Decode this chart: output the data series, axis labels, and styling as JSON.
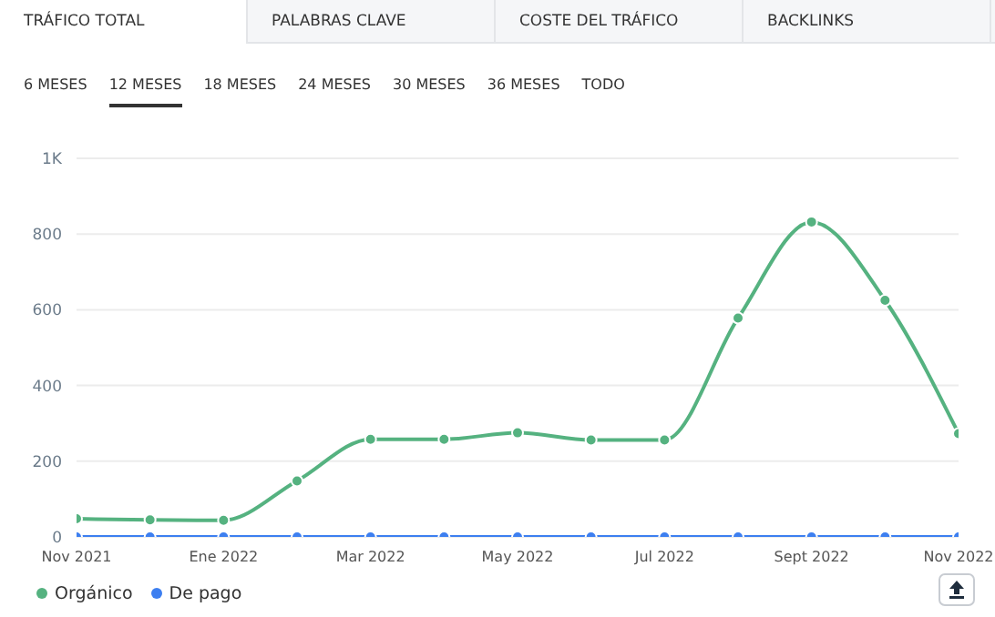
{
  "chart_data": {
    "type": "line",
    "categories": [
      "Nov 2021",
      null,
      "Ene 2022",
      null,
      "Mar 2022",
      null,
      "May 2022",
      null,
      "Jul 2022",
      null,
      "Sept 2022",
      null,
      "Nov 2022"
    ],
    "series": [
      {
        "name": "Orgánico",
        "color": "#55b280",
        "values": [
          48,
          45,
          44,
          148,
          258,
          258,
          275,
          256,
          256,
          578,
          832,
          625,
          273
        ]
      },
      {
        "name": "De pago",
        "color": "#3d7ff0",
        "values": [
          0,
          0,
          0,
          0,
          0,
          0,
          0,
          0,
          0,
          0,
          0,
          0,
          0
        ]
      }
    ],
    "ylim": [
      0,
      1000
    ],
    "yticks": [
      0,
      200,
      400,
      600,
      800,
      {
        "value": 1000,
        "label": "1K"
      }
    ],
    "grid": "y",
    "legend": "bottom left",
    "marker": "circle",
    "line_style": "solid",
    "annotations": [
      "TRÁFICO TOTAL",
      "PALABRAS CLAVE",
      "COSTE DEL TRÁFICO",
      "BACKLINKS",
      "6 MESES",
      "12 MESES",
      "18 MESES",
      "24 MESES",
      "30 MESES",
      "36 MESES",
      "TODO"
    ]
  }
}
